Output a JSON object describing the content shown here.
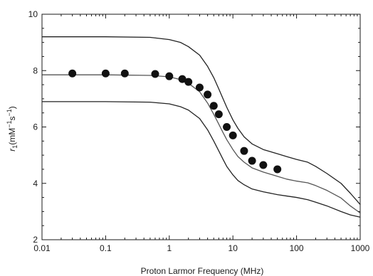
{
  "chart_data": {
    "type": "line",
    "title": "",
    "xlabel": "Proton Larmor Frequency (MHz)",
    "ylabel": {
      "base": "r",
      "sub": "1",
      "units_open": "(mM",
      "units_exp1": "−1",
      "units_mid": "s",
      "units_exp2": "−1",
      "units_close": ")"
    },
    "xscale": "log",
    "xlim": [
      0.01,
      1000
    ],
    "ylim": [
      2,
      10
    ],
    "x_ticks": [
      0.01,
      0.1,
      1,
      10,
      100,
      1000
    ],
    "x_tick_labels": [
      "0.01",
      "0.1",
      "1",
      "10",
      "100",
      "1000"
    ],
    "y_ticks": [
      2,
      4,
      6,
      8,
      10
    ],
    "y_tick_labels": [
      "2",
      "4",
      "6",
      "8",
      "10"
    ],
    "grid": false,
    "legend": "none",
    "series": [
      {
        "kind": "line",
        "color": "#222222",
        "x": [
          0.01,
          0.1,
          0.5,
          1,
          1.5,
          2,
          3,
          4,
          5,
          6,
          7,
          8,
          10,
          12,
          15,
          20,
          30,
          50,
          70,
          100,
          150,
          200,
          300,
          500,
          700,
          1000
        ],
        "y": [
          9.2,
          9.2,
          9.18,
          9.1,
          9.0,
          8.85,
          8.55,
          8.15,
          7.75,
          7.35,
          7.0,
          6.7,
          6.25,
          5.95,
          5.65,
          5.4,
          5.2,
          5.05,
          4.95,
          4.85,
          4.75,
          4.6,
          4.35,
          4.0,
          3.65,
          3.25
        ]
      },
      {
        "kind": "line",
        "color": "#555555",
        "x": [
          0.01,
          0.1,
          0.5,
          1,
          1.5,
          2,
          3,
          4,
          5,
          6,
          7,
          8,
          10,
          12,
          15,
          20,
          30,
          50,
          70,
          100,
          150,
          200,
          300,
          500,
          700,
          1000
        ],
        "y": [
          7.85,
          7.85,
          7.83,
          7.78,
          7.68,
          7.55,
          7.25,
          6.85,
          6.45,
          6.1,
          5.8,
          5.55,
          5.2,
          4.95,
          4.75,
          4.55,
          4.4,
          4.25,
          4.15,
          4.08,
          4.02,
          3.92,
          3.75,
          3.48,
          3.2,
          2.95
        ]
      },
      {
        "kind": "line",
        "color": "#222222",
        "x": [
          0.01,
          0.1,
          0.5,
          1,
          1.5,
          2,
          3,
          4,
          5,
          6,
          7,
          8,
          10,
          12,
          15,
          20,
          30,
          50,
          70,
          100,
          150,
          200,
          300,
          500,
          700,
          1000
        ],
        "y": [
          6.9,
          6.9,
          6.88,
          6.82,
          6.72,
          6.6,
          6.3,
          5.9,
          5.5,
          5.15,
          4.85,
          4.6,
          4.3,
          4.1,
          3.95,
          3.8,
          3.7,
          3.6,
          3.55,
          3.5,
          3.42,
          3.33,
          3.2,
          3.0,
          2.88,
          2.8
        ]
      },
      {
        "kind": "scatter",
        "color": "#111111",
        "x": [
          0.03,
          0.1,
          0.2,
          0.6,
          1.0,
          1.6,
          2.0,
          3.0,
          4.0,
          5.0,
          6.0,
          8.0,
          10.0,
          15.0,
          20.0,
          30.0,
          50.0
        ],
        "y": [
          7.9,
          7.9,
          7.9,
          7.88,
          7.8,
          7.7,
          7.6,
          7.4,
          7.15,
          6.75,
          6.45,
          6.0,
          5.7,
          5.15,
          4.8,
          4.65,
          4.5
        ]
      }
    ]
  }
}
